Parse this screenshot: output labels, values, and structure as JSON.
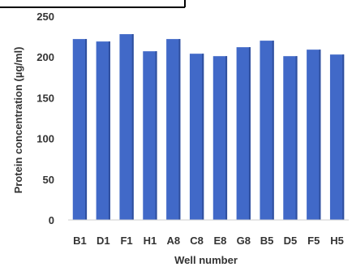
{
  "chart_data": {
    "type": "bar",
    "title": "",
    "xlabel": "Well number",
    "ylabel": "Protein concentration (µg/ml)",
    "ylim": [
      0,
      250
    ],
    "yticks": [
      0,
      50,
      100,
      150,
      200,
      250
    ],
    "grid": false,
    "categories": [
      "B1",
      "D1",
      "F1",
      "H1",
      "A8",
      "C8",
      "E8",
      "G8",
      "B5",
      "D5",
      "F5",
      "H5"
    ],
    "values": [
      222,
      219,
      228,
      207,
      222,
      204,
      201,
      212,
      220,
      201,
      209,
      203
    ],
    "colors": {
      "bar": "#4169c8",
      "bar_shadow": "#2f4f9e",
      "axis": "#cfcfcf",
      "text": "#333333",
      "frame": "#000000"
    }
  }
}
